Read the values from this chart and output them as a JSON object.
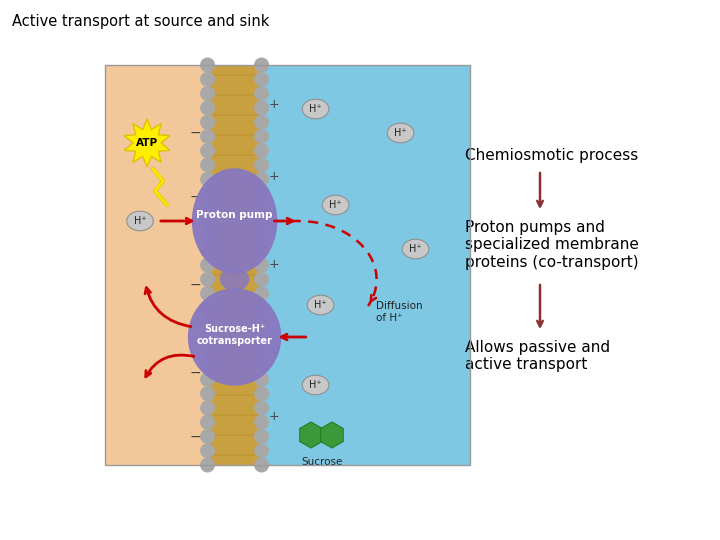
{
  "title": "Active transport at source and sink",
  "title_fontsize": 10.5,
  "background_color": "#ffffff",
  "label1": "Chemiosmotic process",
  "label2": "Proton pumps and\nspecialized membrane\nproteins (co-transport)",
  "label3": "Allows passive and\nactive transport",
  "label_fontsize": 11,
  "arrow_color": "#8B3030",
  "text_color": "#000000",
  "diagram_bg_left": "#F2C89A",
  "diagram_bg_right": "#7EC8E3",
  "membrane_color_outer": "#C8A040",
  "membrane_color_inner": "#D4B060",
  "membrane_gray": "#A8A8A8",
  "protein_color": "#8878C0",
  "h_ion_color": "#C8C8C8",
  "atp_color": "#FFEE00",
  "sucrose_color": "#3A9A3A",
  "red_arrow": "#CC0000",
  "plus_minus_color": "#444444"
}
